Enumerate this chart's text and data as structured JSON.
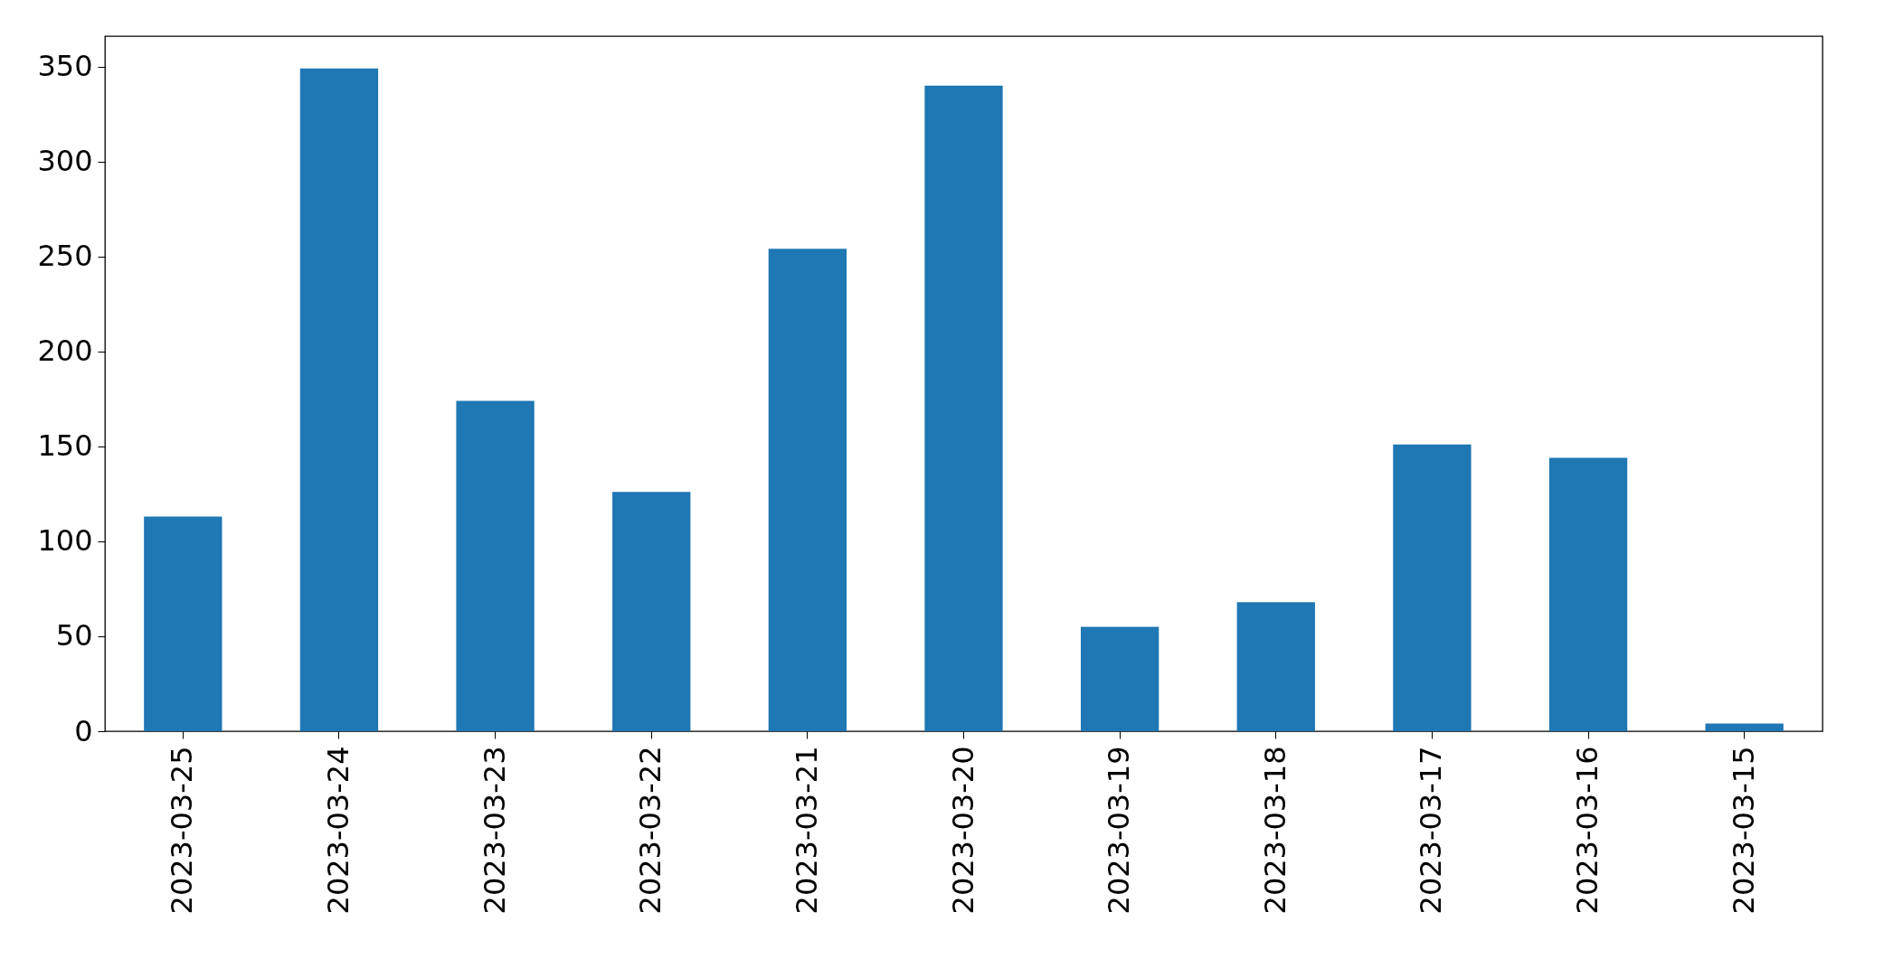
{
  "chart_data": {
    "type": "bar",
    "categories": [
      "2023-03-25",
      "2023-03-24",
      "2023-03-23",
      "2023-03-22",
      "2023-03-21",
      "2023-03-20",
      "2023-03-19",
      "2023-03-18",
      "2023-03-17",
      "2023-03-16",
      "2023-03-15"
    ],
    "values": [
      113,
      349,
      174,
      126,
      254,
      340,
      55,
      68,
      151,
      144,
      4
    ],
    "color": "#1f77b4",
    "ylim": [
      0,
      366
    ],
    "yticks": [
      0,
      50,
      100,
      150,
      200,
      250,
      300,
      350
    ],
    "grid": false
  }
}
